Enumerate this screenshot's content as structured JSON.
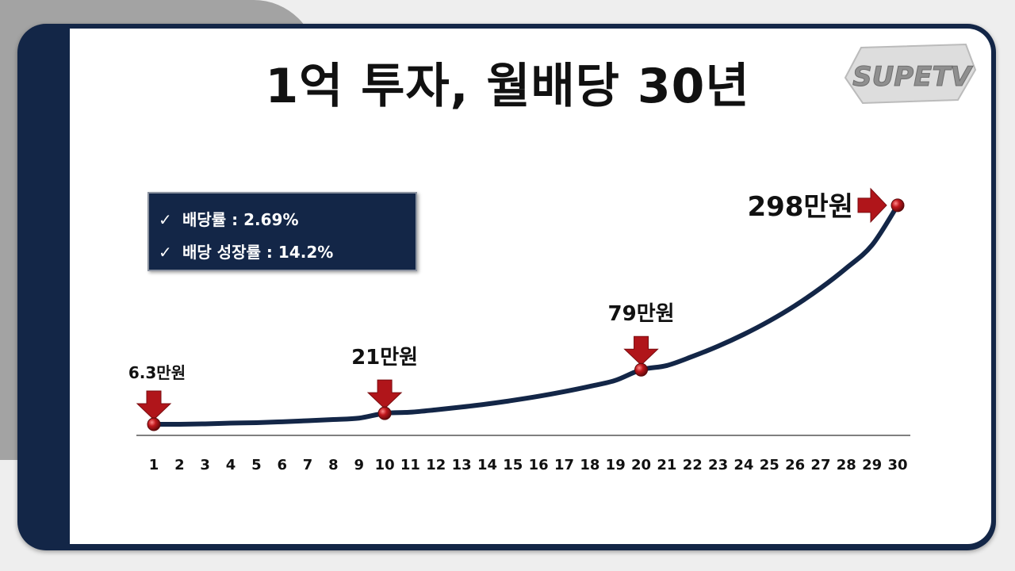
{
  "title": "1억 투자, 월배당 30년",
  "logo_text": "SUPETV",
  "info_box": {
    "items": [
      {
        "check": "✓",
        "text": "배당률 : 2.69%"
      },
      {
        "check": "✓",
        "text": "배당 성장률 : 14.2%"
      }
    ]
  },
  "colors": {
    "frame": "#132647",
    "line": "#132647",
    "marker": "#c0171c",
    "arrow": "#b0151a"
  },
  "chart_data": {
    "type": "line",
    "title": "",
    "xlabel": "",
    "ylabel": "",
    "x": [
      1,
      2,
      3,
      4,
      5,
      6,
      7,
      8,
      9,
      10,
      11,
      12,
      13,
      14,
      15,
      16,
      17,
      18,
      19,
      20,
      21,
      22,
      23,
      24,
      25,
      26,
      27,
      28,
      29,
      30
    ],
    "series": [
      {
        "values": [
          6.3,
          6.4,
          6.9,
          7.9,
          8.5,
          9.7,
          11.1,
          12.7,
          14.5,
          21,
          22.4,
          25.6,
          29.3,
          33.4,
          38.2,
          43.6,
          49.8,
          56.8,
          64.9,
          79,
          84.6,
          96.7,
          110.4,
          126.1,
          144,
          164.4,
          187.8,
          214.4,
          244.9,
          298
        ]
      }
    ],
    "ylim": [
      0,
      300
    ],
    "grid": false,
    "highlights": [
      {
        "x": 1,
        "y": 6.3,
        "label": "6.3만원"
      },
      {
        "x": 10,
        "y": 21,
        "label": "21만원"
      },
      {
        "x": 20,
        "y": 79,
        "label": "79만원"
      },
      {
        "x": 30,
        "y": 298,
        "label": "298만원"
      }
    ]
  }
}
